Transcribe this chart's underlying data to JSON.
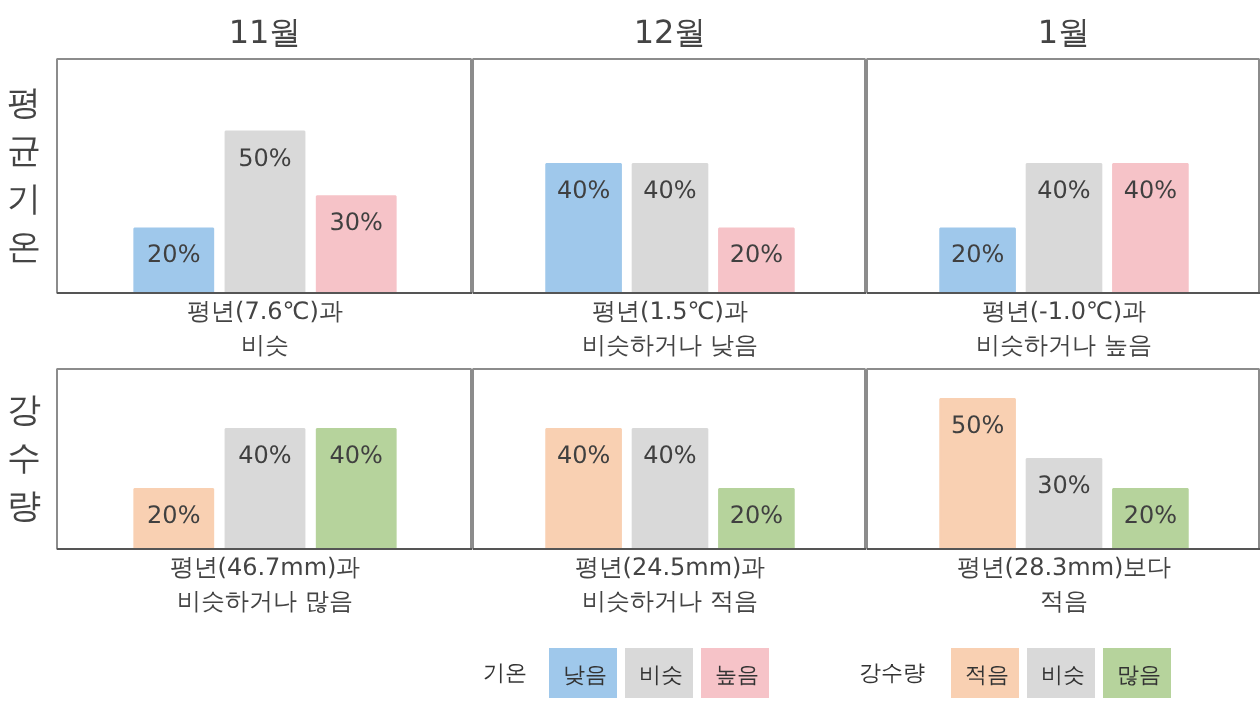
{
  "chart_data": [
    {
      "type": "bar",
      "title": "11월",
      "ylabel": "평균기온",
      "xlabel": "평년(7.6℃)과\n비슷",
      "categories": [
        null,
        null,
        null
      ],
      "values": [
        20,
        50,
        30
      ],
      "colors": [
        "#9fc8eb",
        "#d9d9d9",
        "#f6c3c8"
      ],
      "value_labels": [
        "20%",
        "50%",
        "30%"
      ]
    },
    {
      "type": "bar",
      "title": "12월",
      "xlabel": "평년(1.5℃)과\n비슷하거나 낮음",
      "categories": [
        null,
        null,
        null
      ],
      "values": [
        40,
        40,
        20
      ],
      "colors": [
        "#9fc8eb",
        "#d9d9d9",
        "#f6c3c8"
      ],
      "value_labels": [
        "40%",
        "40%",
        "20%"
      ]
    },
    {
      "type": "bar",
      "title": "1월",
      "xlabel": "평년(-1.0℃)과\n비슷하거나 높음",
      "categories": [
        null,
        null,
        null
      ],
      "values": [
        20,
        40,
        40
      ],
      "colors": [
        "#9fc8eb",
        "#d9d9d9",
        "#f6c3c8"
      ],
      "value_labels": [
        "20%",
        "40%",
        "40%"
      ]
    },
    {
      "type": "bar",
      "ylabel": "강수량",
      "xlabel": "평년(46.7mm)과\n비슷하거나 많음",
      "categories": [
        null,
        null,
        null
      ],
      "values": [
        20,
        40,
        40
      ],
      "colors": [
        "#f9d0b2",
        "#d9d9d9",
        "#b6d39c"
      ],
      "value_labels": [
        "20%",
        "40%",
        "40%"
      ]
    },
    {
      "type": "bar",
      "xlabel": "평년(24.5mm)과\n비슷하거나 적음",
      "categories": [
        null,
        null,
        null
      ],
      "values": [
        40,
        40,
        20
      ],
      "colors": [
        "#f9d0b2",
        "#d9d9d9",
        "#b6d39c"
      ],
      "value_labels": [
        "40%",
        "40%",
        "20%"
      ]
    },
    {
      "type": "bar",
      "xlabel": "평년(28.3mm)보다\n적음",
      "categories": [
        null,
        null,
        null
      ],
      "values": [
        50,
        30,
        20
      ],
      "colors": [
        "#f9d0b2",
        "#d9d9d9",
        "#b6d39c"
      ],
      "value_labels": [
        "50%",
        "30%",
        "20%"
      ]
    },
    {
      "type": "other",
      "legend_title": "기온",
      "categories": [
        "낮음",
        "비슷",
        "높음"
      ],
      "colors": [
        "#9fc8eb",
        "#d9d9d9",
        "#f6c3c8"
      ]
    },
    {
      "type": "other",
      "legend_title": "강수량",
      "categories": [
        "적음",
        "비슷",
        "많음"
      ],
      "colors": [
        "#f9d0b2",
        "#d9d9d9",
        "#b6d39c"
      ]
    }
  ]
}
